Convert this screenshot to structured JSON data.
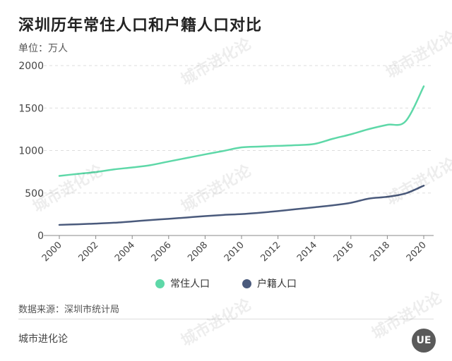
{
  "header": {
    "title": "深圳历年常住人口和户籍人口对比",
    "unit": "单位：万人"
  },
  "footer": {
    "source": "数据来源：深圳市统计局",
    "brand": "城市进化论",
    "logo_text": "UE",
    "watermark": "城市进化论"
  },
  "colors": {
    "resident": "#5ed8a8",
    "registered": "#4a5a7c",
    "grid": "#dddddd",
    "axis": "#888888"
  },
  "chart_data": {
    "type": "line",
    "title": "深圳历年常住人口和户籍人口对比",
    "xlabel": "",
    "ylabel": "单位：万人",
    "x": [
      2000,
      2001,
      2002,
      2003,
      2004,
      2005,
      2006,
      2007,
      2008,
      2009,
      2010,
      2011,
      2012,
      2013,
      2014,
      2015,
      2016,
      2017,
      2018,
      2019,
      2020
    ],
    "x_tick_labels": [
      "2000",
      "2002",
      "2004",
      "2006",
      "2008",
      "2010",
      "2012",
      "2014",
      "2016",
      "2018",
      "2020"
    ],
    "y_tick_labels": [
      "0",
      "500",
      "1000",
      "1500",
      "2000"
    ],
    "ylim": [
      0,
      2000
    ],
    "grid": true,
    "legend_position": "bottom-center",
    "series": [
      {
        "name": "常住人口",
        "values": [
          701,
          725,
          747,
          778,
          801,
          828,
          871,
          913,
          955,
          995,
          1037,
          1047,
          1055,
          1063,
          1078,
          1138,
          1191,
          1253,
          1303,
          1344,
          1756
        ]
      },
      {
        "name": "户籍人口",
        "values": [
          125,
          132,
          140,
          150,
          165,
          182,
          196,
          212,
          228,
          242,
          252,
          268,
          287,
          310,
          332,
          355,
          385,
          435,
          455,
          495,
          587
        ]
      }
    ]
  }
}
